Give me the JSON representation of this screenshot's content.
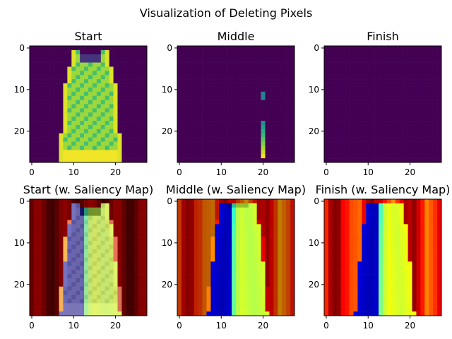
{
  "suptitle": "Visualization of Deleting Pixels",
  "chart_data": [
    {
      "type": "heatmap",
      "title": "Start",
      "content": "dress-image",
      "image_size": [
        28,
        28
      ],
      "xticks": [
        "0",
        "10",
        "20"
      ],
      "yticks": [
        "0",
        "10",
        "20"
      ],
      "colormap": "viridis",
      "deleted_fraction": 0.0
    },
    {
      "type": "heatmap",
      "title": "Middle",
      "content": "mostly-deleted-image",
      "image_size": [
        28,
        28
      ],
      "xticks": [
        "0",
        "10",
        "20"
      ],
      "yticks": [
        "0",
        "10",
        "20"
      ],
      "colormap": "viridis",
      "remaining_pixels_column": 20,
      "remaining_pixels_rows": [
        [
          11,
          12
        ],
        [
          18,
          26
        ]
      ]
    },
    {
      "type": "heatmap",
      "title": "Finish",
      "content": "fully-deleted-image",
      "image_size": [
        28,
        28
      ],
      "xticks": [
        "0",
        "10",
        "20"
      ],
      "yticks": [
        "0",
        "10",
        "20"
      ],
      "colormap": "viridis",
      "deleted_fraction": 1.0
    },
    {
      "type": "heatmap",
      "title": "Start (w. Saliency Map)",
      "content": "dress-with-saliency-overlay",
      "image_size": [
        28,
        28
      ],
      "xticks": [
        "0",
        "10",
        "20"
      ],
      "yticks": [
        "0",
        "10",
        "20"
      ],
      "colormap": "jet"
    },
    {
      "type": "heatmap",
      "title": "Middle (w. Saliency Map)",
      "content": "saliency-map",
      "image_size": [
        28,
        28
      ],
      "xticks": [
        "0",
        "10",
        "20"
      ],
      "yticks": [
        "0",
        "10",
        "20"
      ],
      "colormap": "jet"
    },
    {
      "type": "heatmap",
      "title": "Finish (w. Saliency Map)",
      "content": "saliency-map",
      "image_size": [
        28,
        28
      ],
      "xticks": [
        "0",
        "10",
        "20"
      ],
      "yticks": [
        "0",
        "10",
        "20"
      ],
      "colormap": "jet"
    }
  ],
  "colors": {
    "viridis_background": "#440154",
    "saliency_low": "#7f0000",
    "saliency_high": "#00007f"
  }
}
